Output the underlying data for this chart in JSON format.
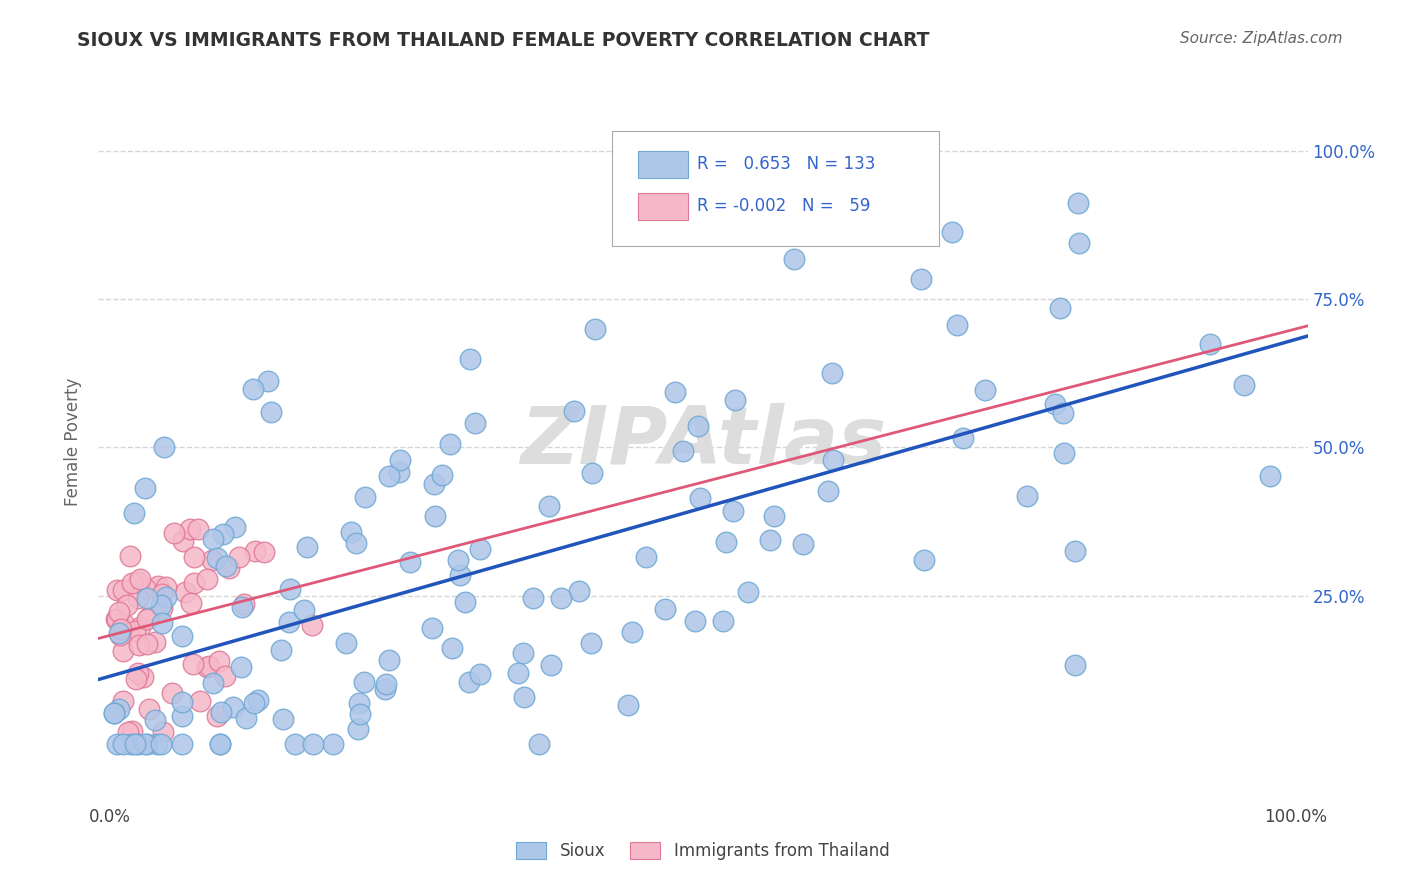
{
  "title": "SIOUX VS IMMIGRANTS FROM THAILAND FEMALE POVERTY CORRELATION CHART",
  "source": "Source: ZipAtlas.com",
  "ylabel": "Female Poverty",
  "ytick_vals": [
    0.25,
    0.5,
    0.75,
    1.0
  ],
  "ytick_labels": [
    "25.0%",
    "50.0%",
    "75.0%",
    "100.0%"
  ],
  "sioux_color": "#aec6e8",
  "sioux_edge": "#6fa8d4",
  "thailand_color": "#f5b8c8",
  "thailand_edge": "#e07898",
  "line_sioux_color": "#2255bb",
  "line_thailand_color": "#e05878",
  "grid_color": "#cccccc",
  "watermark_color": "#dddddd",
  "legend_text_color": "#3366cc",
  "right_tick_color": "#3366cc",
  "title_color": "#333333",
  "ylabel_color": "#666666",
  "sioux_seed": 101,
  "thailand_seed": 202
}
